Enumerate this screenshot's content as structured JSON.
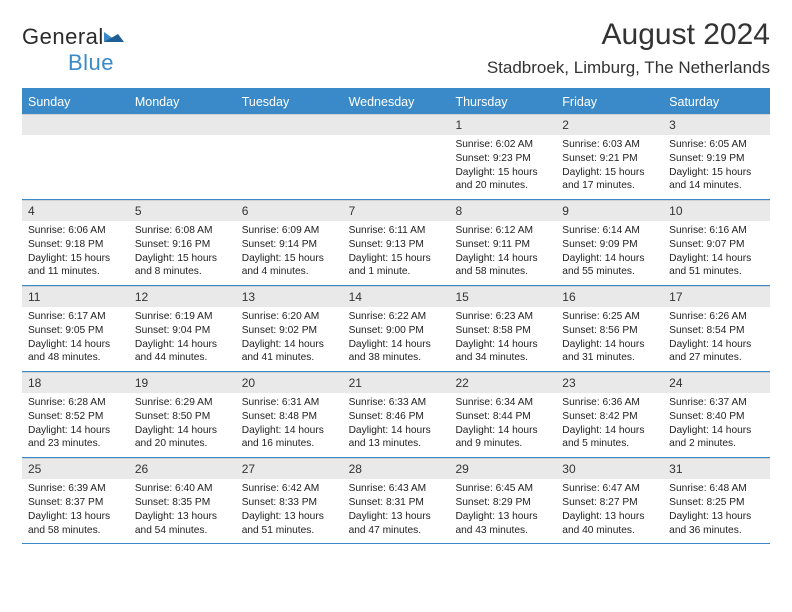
{
  "branding": {
    "logo_text_1": "General",
    "logo_text_2": "Blue",
    "logo_color_dark": "#2b2b2b",
    "logo_color_blue": "#3a8ac9"
  },
  "header": {
    "month_title": "August 2024",
    "location": "Stadbroek, Limburg, The Netherlands"
  },
  "style": {
    "accent_color": "#3a8ac9",
    "daynum_bg": "#e9e9e9",
    "page_bg": "#ffffff",
    "text_color": "#222222",
    "dow_fontsize": 12.5,
    "body_fontsize": 10.2,
    "title_fontsize": 30,
    "location_fontsize": 17
  },
  "days_of_week": [
    "Sunday",
    "Monday",
    "Tuesday",
    "Wednesday",
    "Thursday",
    "Friday",
    "Saturday"
  ],
  "weeks": [
    [
      {
        "num": "",
        "sunrise": "",
        "sunset": "",
        "daylight": ""
      },
      {
        "num": "",
        "sunrise": "",
        "sunset": "",
        "daylight": ""
      },
      {
        "num": "",
        "sunrise": "",
        "sunset": "",
        "daylight": ""
      },
      {
        "num": "",
        "sunrise": "",
        "sunset": "",
        "daylight": ""
      },
      {
        "num": "1",
        "sunrise": "Sunrise: 6:02 AM",
        "sunset": "Sunset: 9:23 PM",
        "daylight": "Daylight: 15 hours and 20 minutes."
      },
      {
        "num": "2",
        "sunrise": "Sunrise: 6:03 AM",
        "sunset": "Sunset: 9:21 PM",
        "daylight": "Daylight: 15 hours and 17 minutes."
      },
      {
        "num": "3",
        "sunrise": "Sunrise: 6:05 AM",
        "sunset": "Sunset: 9:19 PM",
        "daylight": "Daylight: 15 hours and 14 minutes."
      }
    ],
    [
      {
        "num": "4",
        "sunrise": "Sunrise: 6:06 AM",
        "sunset": "Sunset: 9:18 PM",
        "daylight": "Daylight: 15 hours and 11 minutes."
      },
      {
        "num": "5",
        "sunrise": "Sunrise: 6:08 AM",
        "sunset": "Sunset: 9:16 PM",
        "daylight": "Daylight: 15 hours and 8 minutes."
      },
      {
        "num": "6",
        "sunrise": "Sunrise: 6:09 AM",
        "sunset": "Sunset: 9:14 PM",
        "daylight": "Daylight: 15 hours and 4 minutes."
      },
      {
        "num": "7",
        "sunrise": "Sunrise: 6:11 AM",
        "sunset": "Sunset: 9:13 PM",
        "daylight": "Daylight: 15 hours and 1 minute."
      },
      {
        "num": "8",
        "sunrise": "Sunrise: 6:12 AM",
        "sunset": "Sunset: 9:11 PM",
        "daylight": "Daylight: 14 hours and 58 minutes."
      },
      {
        "num": "9",
        "sunrise": "Sunrise: 6:14 AM",
        "sunset": "Sunset: 9:09 PM",
        "daylight": "Daylight: 14 hours and 55 minutes."
      },
      {
        "num": "10",
        "sunrise": "Sunrise: 6:16 AM",
        "sunset": "Sunset: 9:07 PM",
        "daylight": "Daylight: 14 hours and 51 minutes."
      }
    ],
    [
      {
        "num": "11",
        "sunrise": "Sunrise: 6:17 AM",
        "sunset": "Sunset: 9:05 PM",
        "daylight": "Daylight: 14 hours and 48 minutes."
      },
      {
        "num": "12",
        "sunrise": "Sunrise: 6:19 AM",
        "sunset": "Sunset: 9:04 PM",
        "daylight": "Daylight: 14 hours and 44 minutes."
      },
      {
        "num": "13",
        "sunrise": "Sunrise: 6:20 AM",
        "sunset": "Sunset: 9:02 PM",
        "daylight": "Daylight: 14 hours and 41 minutes."
      },
      {
        "num": "14",
        "sunrise": "Sunrise: 6:22 AM",
        "sunset": "Sunset: 9:00 PM",
        "daylight": "Daylight: 14 hours and 38 minutes."
      },
      {
        "num": "15",
        "sunrise": "Sunrise: 6:23 AM",
        "sunset": "Sunset: 8:58 PM",
        "daylight": "Daylight: 14 hours and 34 minutes."
      },
      {
        "num": "16",
        "sunrise": "Sunrise: 6:25 AM",
        "sunset": "Sunset: 8:56 PM",
        "daylight": "Daylight: 14 hours and 31 minutes."
      },
      {
        "num": "17",
        "sunrise": "Sunrise: 6:26 AM",
        "sunset": "Sunset: 8:54 PM",
        "daylight": "Daylight: 14 hours and 27 minutes."
      }
    ],
    [
      {
        "num": "18",
        "sunrise": "Sunrise: 6:28 AM",
        "sunset": "Sunset: 8:52 PM",
        "daylight": "Daylight: 14 hours and 23 minutes."
      },
      {
        "num": "19",
        "sunrise": "Sunrise: 6:29 AM",
        "sunset": "Sunset: 8:50 PM",
        "daylight": "Daylight: 14 hours and 20 minutes."
      },
      {
        "num": "20",
        "sunrise": "Sunrise: 6:31 AM",
        "sunset": "Sunset: 8:48 PM",
        "daylight": "Daylight: 14 hours and 16 minutes."
      },
      {
        "num": "21",
        "sunrise": "Sunrise: 6:33 AM",
        "sunset": "Sunset: 8:46 PM",
        "daylight": "Daylight: 14 hours and 13 minutes."
      },
      {
        "num": "22",
        "sunrise": "Sunrise: 6:34 AM",
        "sunset": "Sunset: 8:44 PM",
        "daylight": "Daylight: 14 hours and 9 minutes."
      },
      {
        "num": "23",
        "sunrise": "Sunrise: 6:36 AM",
        "sunset": "Sunset: 8:42 PM",
        "daylight": "Daylight: 14 hours and 5 minutes."
      },
      {
        "num": "24",
        "sunrise": "Sunrise: 6:37 AM",
        "sunset": "Sunset: 8:40 PM",
        "daylight": "Daylight: 14 hours and 2 minutes."
      }
    ],
    [
      {
        "num": "25",
        "sunrise": "Sunrise: 6:39 AM",
        "sunset": "Sunset: 8:37 PM",
        "daylight": "Daylight: 13 hours and 58 minutes."
      },
      {
        "num": "26",
        "sunrise": "Sunrise: 6:40 AM",
        "sunset": "Sunset: 8:35 PM",
        "daylight": "Daylight: 13 hours and 54 minutes."
      },
      {
        "num": "27",
        "sunrise": "Sunrise: 6:42 AM",
        "sunset": "Sunset: 8:33 PM",
        "daylight": "Daylight: 13 hours and 51 minutes."
      },
      {
        "num": "28",
        "sunrise": "Sunrise: 6:43 AM",
        "sunset": "Sunset: 8:31 PM",
        "daylight": "Daylight: 13 hours and 47 minutes."
      },
      {
        "num": "29",
        "sunrise": "Sunrise: 6:45 AM",
        "sunset": "Sunset: 8:29 PM",
        "daylight": "Daylight: 13 hours and 43 minutes."
      },
      {
        "num": "30",
        "sunrise": "Sunrise: 6:47 AM",
        "sunset": "Sunset: 8:27 PM",
        "daylight": "Daylight: 13 hours and 40 minutes."
      },
      {
        "num": "31",
        "sunrise": "Sunrise: 6:48 AM",
        "sunset": "Sunset: 8:25 PM",
        "daylight": "Daylight: 13 hours and 36 minutes."
      }
    ]
  ]
}
